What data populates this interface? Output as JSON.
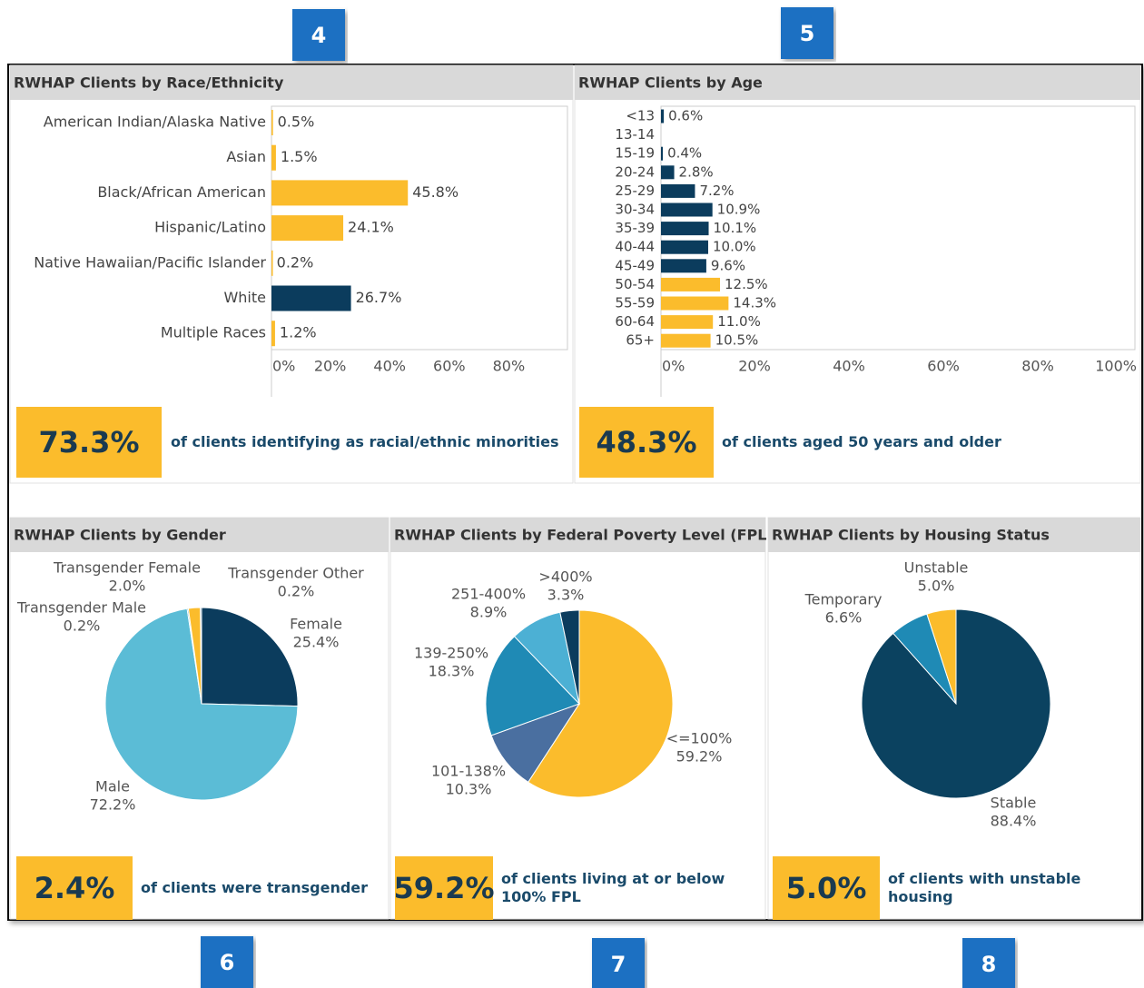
{
  "badges": [
    "4",
    "5",
    "6",
    "7",
    "8"
  ],
  "chart_data": [
    {
      "type": "bar",
      "title": "RWHAP Clients by Race/Ethnicity",
      "categories": [
        "American Indian/Alaska Native",
        "Asian",
        "Black/African American",
        "Hispanic/Latino",
        "Native Hawaiian/Pacific Islander",
        "White",
        "Multiple Races"
      ],
      "values": [
        0.5,
        1.5,
        45.8,
        24.1,
        0.2,
        26.7,
        1.2
      ],
      "value_labels": [
        "0.5%",
        "1.5%",
        "45.8%",
        "24.1%",
        "0.2%",
        "26.7%",
        "1.2%"
      ],
      "colors": [
        "#fbbc2c",
        "#fbbc2c",
        "#fbbc2c",
        "#fbbc2c",
        "#fbbc2c",
        "#0b3c5d",
        "#fbbc2c"
      ],
      "xlim": [
        0,
        100
      ],
      "xticks": [
        {
          "value": 0,
          "label": "0%"
        },
        {
          "value": 20,
          "label": "20%"
        },
        {
          "value": 40,
          "label": "40%"
        },
        {
          "value": 60,
          "label": "60%"
        },
        {
          "value": 80,
          "label": "80%"
        }
      ],
      "highlight": "73.3%",
      "highlight_text": "of clients identifying as racial/ethnic minorities"
    },
    {
      "type": "bar",
      "title": "RWHAP Clients by Age",
      "categories": [
        "<13",
        "13-14",
        "15-19",
        "20-24",
        "25-29",
        "30-34",
        "35-39",
        "40-44",
        "45-49",
        "50-54",
        "55-59",
        "60-64",
        "65+"
      ],
      "values": [
        0.6,
        null,
        0.4,
        2.8,
        7.2,
        10.9,
        10.1,
        10.0,
        9.6,
        12.5,
        14.3,
        11.0,
        10.5
      ],
      "value_labels": [
        "0.6%",
        null,
        "0.4%",
        "2.8%",
        "7.2%",
        "10.9%",
        "10.1%",
        "10.0%",
        "9.6%",
        "12.5%",
        "14.3%",
        "11.0%",
        "10.5%"
      ],
      "colors": [
        "#0b3c5d",
        "#0b3c5d",
        "#0b3c5d",
        "#0b3c5d",
        "#0b3c5d",
        "#0b3c5d",
        "#0b3c5d",
        "#0b3c5d",
        "#0b3c5d",
        "#fbbc2c",
        "#fbbc2c",
        "#fbbc2c",
        "#fbbc2c"
      ],
      "xlim": [
        0,
        100
      ],
      "xticks": [
        {
          "value": 0,
          "label": "0%"
        },
        {
          "value": 20,
          "label": "20%"
        },
        {
          "value": 40,
          "label": "40%"
        },
        {
          "value": 60,
          "label": "60%"
        },
        {
          "value": 80,
          "label": "80%"
        },
        {
          "value": 100,
          "label": "100%"
        }
      ],
      "highlight": "48.3%",
      "highlight_text": "of clients aged 50 years and older"
    },
    {
      "type": "pie",
      "title": "RWHAP Clients by Gender",
      "categories": [
        "Female",
        "Male",
        "Transgender Male",
        "Transgender Female",
        "Transgender Other"
      ],
      "values": [
        25.4,
        72.2,
        0.2,
        2.0,
        0.2
      ],
      "value_labels": [
        "25.4%",
        "72.2%",
        "0.2%",
        "2.0%",
        "0.2%"
      ],
      "colors": [
        "#0b3c5d",
        "#5bbcd6",
        "#1f8ab5",
        "#fbbc2c",
        "#2a5f8a"
      ],
      "highlight": "2.4%",
      "highlight_text": "of clients were transgender"
    },
    {
      "type": "pie",
      "title": "RWHAP Clients by Federal Poverty Level (FPL)",
      "categories": [
        "<=100%",
        "101-138%",
        "139-250%",
        "251-400%",
        ">400%"
      ],
      "values": [
        59.2,
        10.3,
        18.3,
        8.9,
        3.3
      ],
      "value_labels": [
        "59.2%",
        "10.3%",
        "18.3%",
        "8.9%",
        "3.3%"
      ],
      "colors": [
        "#fbbc2c",
        "#4a6fa0",
        "#1f8ab5",
        "#4cb0d4",
        "#0b3c5d"
      ],
      "highlight": "59.2%",
      "highlight_text": "of clients living at or below 100% FPL"
    },
    {
      "type": "pie",
      "title": "RWHAP Clients by Housing Status",
      "categories": [
        "Stable",
        "Temporary",
        "Unstable"
      ],
      "values": [
        88.4,
        6.6,
        5.0
      ],
      "value_labels": [
        "88.4%",
        "6.6%",
        "5.0%"
      ],
      "colors": [
        "#0b4260",
        "#1f8ab5",
        "#fbbc2c"
      ],
      "highlight": "5.0%",
      "highlight_text": "of clients with unstable housing"
    }
  ]
}
